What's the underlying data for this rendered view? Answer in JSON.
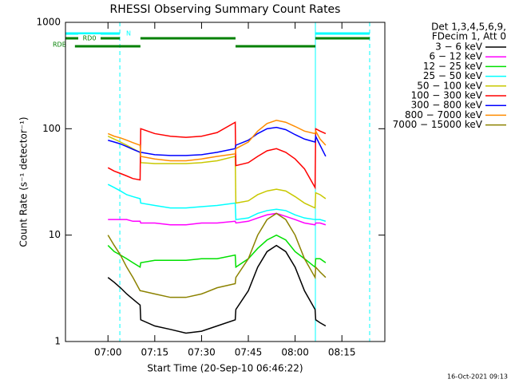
{
  "chart_data": {
    "type": "line",
    "title": "RHESSI Observing Summary Count Rates",
    "x_label": "Start Time (20-Sep-10 06:46:22)",
    "y_label": "Count Rate (s⁻¹ detector⁻¹)",
    "legend_header": [
      "Det 1,3,4,5,6,9,",
      "FDecim 1, Att 0"
    ],
    "footer": "16-Oct-2021 09:13",
    "log_y": true,
    "xlim": [
      406.37,
      508.77
    ],
    "xticks": [
      {
        "value": 420,
        "label": "07:00"
      },
      {
        "value": 435,
        "label": "07:15"
      },
      {
        "value": 450,
        "label": "07:30"
      },
      {
        "value": 465,
        "label": "07:45"
      },
      {
        "value": 480,
        "label": "08:00"
      },
      {
        "value": 495,
        "label": "08:15"
      }
    ],
    "ylim": [
      1,
      1000
    ],
    "yticks": [
      1,
      10,
      100,
      1000
    ],
    "x": [
      420,
      422,
      424,
      426,
      428,
      430.3,
      430.5,
      435,
      440,
      445,
      450,
      455,
      460.8,
      461,
      465,
      468,
      471,
      474,
      477,
      480,
      483,
      486.4,
      486.6,
      488,
      489.8
    ],
    "series": [
      {
        "name": "3 − 6 keV",
        "color": "#000000",
        "values": [
          4,
          3.6,
          3.2,
          2.8,
          2.5,
          2.2,
          1.6,
          1.4,
          1.3,
          1.2,
          1.25,
          1.4,
          1.6,
          2,
          3,
          5,
          7,
          8,
          7,
          5,
          3,
          2,
          1.6,
          1.5,
          1.4
        ]
      },
      {
        "name": "6 − 12 keV",
        "color": "#ff00ff",
        "values": [
          14,
          14,
          14,
          14,
          13.5,
          13.5,
          13,
          13,
          12.5,
          12.5,
          13,
          13,
          13.5,
          13,
          13.5,
          14.5,
          15.5,
          16,
          15,
          14,
          13,
          12.5,
          13,
          13,
          12.5
        ]
      },
      {
        "name": "12 − 25 keV",
        "color": "#00e000",
        "values": [
          8,
          7,
          6.5,
          6,
          5.5,
          5,
          5.5,
          5.8,
          5.8,
          5.8,
          6,
          6,
          6.5,
          5,
          6,
          7.5,
          9,
          10,
          9,
          7,
          6,
          5,
          6,
          6,
          5.5
        ]
      },
      {
        "name": "25 − 50 keV",
        "color": "#00ffff",
        "values": [
          30,
          28,
          26,
          24,
          23,
          22,
          20,
          19,
          18,
          18,
          18.5,
          19,
          20,
          14,
          14.5,
          16,
          17,
          17.5,
          17,
          15.5,
          14.5,
          14,
          14,
          14,
          13.5
        ]
      },
      {
        "name": "50 − 100 keV",
        "color": "#c8c800",
        "values": [
          85,
          80,
          75,
          70,
          65,
          60,
          48,
          47,
          47,
          47,
          48,
          50,
          55,
          20,
          21,
          24,
          26,
          27,
          26,
          23,
          20,
          18,
          25,
          24,
          22
        ]
      },
      {
        "name": "100 − 300 keV",
        "color": "#ff0000",
        "values": [
          43,
          40,
          38,
          36,
          34,
          33,
          100,
          90,
          85,
          83,
          85,
          92,
          115,
          45,
          48,
          55,
          62,
          65,
          60,
          52,
          42,
          28,
          100,
          95,
          90
        ]
      },
      {
        "name": "300 − 800 keV",
        "color": "#0000ff",
        "values": [
          78,
          75,
          72,
          68,
          64,
          60,
          60,
          57,
          56,
          56,
          57,
          60,
          65,
          70,
          78,
          90,
          100,
          103,
          98,
          88,
          80,
          75,
          85,
          70,
          55
        ]
      },
      {
        "name": "800 − 7000 keV",
        "color": "#ff8c00",
        "values": [
          90,
          85,
          82,
          78,
          74,
          70,
          55,
          52,
          50,
          50,
          52,
          55,
          58,
          65,
          75,
          95,
          112,
          120,
          115,
          105,
          95,
          90,
          95,
          80,
          70
        ]
      },
      {
        "name": "7000 − 15000 keV",
        "color": "#8c8200",
        "values": [
          10,
          8,
          6.5,
          5,
          4,
          3,
          3,
          2.8,
          2.6,
          2.6,
          2.8,
          3.2,
          3.5,
          4,
          6,
          10,
          14,
          16,
          14,
          10,
          6,
          4,
          5,
          4.5,
          4
        ]
      }
    ],
    "flags": [
      {
        "label": "N",
        "color": "#00ffff",
        "segments": [
          [
            406.37,
            423.8
          ],
          [
            486.5,
            503.9
          ]
        ]
      },
      {
        "label": "RD0",
        "color": "#008000",
        "segments": [
          [
            406.37,
            423.8
          ],
          [
            430.4,
            460.9
          ],
          [
            486.5,
            503.9
          ]
        ]
      },
      {
        "label": "RDB",
        "color": "#008000",
        "segments": [
          [
            409.4,
            430.4
          ],
          [
            460.9,
            486.5
          ]
        ]
      }
    ],
    "vlines": [
      {
        "x": 406.37,
        "dashed": false,
        "color": "#00ffff"
      },
      {
        "x": 423.8,
        "dashed": true,
        "color": "#00ffff"
      },
      {
        "x": 486.5,
        "dashed": false,
        "color": "#00ffff"
      },
      {
        "x": 503.9,
        "dashed": true,
        "color": "#00ffff"
      }
    ]
  }
}
